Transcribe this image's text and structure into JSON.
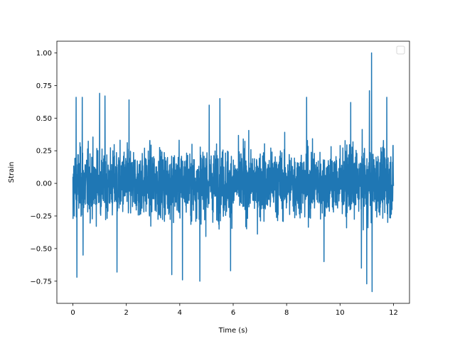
{
  "chart_data": {
    "type": "line",
    "title": "",
    "xlabel": "Time (s)",
    "ylabel": "Strain",
    "xlim": [
      -0.6,
      12.6
    ],
    "ylim": [
      -0.92,
      1.09
    ],
    "xticks": [
      0,
      2,
      4,
      6,
      8,
      10,
      12
    ],
    "xtick_labels": [
      "0",
      "2",
      "4",
      "6",
      "8",
      "10",
      "12"
    ],
    "yticks": [
      -0.75,
      -0.5,
      -0.25,
      0.0,
      0.25,
      0.5,
      0.75,
      1.0
    ],
    "ytick_labels": [
      "−0.75",
      "−0.50",
      "−0.25",
      "0.00",
      "0.25",
      "0.50",
      "0.75",
      "1.00"
    ],
    "grid": false,
    "legend": "top-right",
    "legend_entries": [],
    "series": [
      {
        "color": "#1f77b4",
        "x_range": [
          0,
          12
        ],
        "envelope_upper": 0.4,
        "envelope_lower": -0.4,
        "peaks": [
          {
            "x": 0.12,
            "y": 0.66
          },
          {
            "x": 0.15,
            "y": -0.72
          },
          {
            "x": 0.35,
            "y": 0.66
          },
          {
            "x": 0.38,
            "y": -0.55
          },
          {
            "x": 1.0,
            "y": 0.69
          },
          {
            "x": 1.2,
            "y": 0.67
          },
          {
            "x": 1.65,
            "y": -0.68
          },
          {
            "x": 2.1,
            "y": 0.64
          },
          {
            "x": 3.7,
            "y": -0.7
          },
          {
            "x": 4.1,
            "y": -0.74
          },
          {
            "x": 4.75,
            "y": -0.75
          },
          {
            "x": 5.1,
            "y": 0.6
          },
          {
            "x": 5.5,
            "y": 0.65
          },
          {
            "x": 5.9,
            "y": -0.67
          },
          {
            "x": 8.75,
            "y": 0.66
          },
          {
            "x": 9.4,
            "y": -0.6
          },
          {
            "x": 10.4,
            "y": 0.62
          },
          {
            "x": 10.8,
            "y": -0.65
          },
          {
            "x": 11.0,
            "y": -0.77
          },
          {
            "x": 11.1,
            "y": 0.71
          },
          {
            "x": 11.18,
            "y": 1.0
          },
          {
            "x": 11.2,
            "y": -0.83
          },
          {
            "x": 11.75,
            "y": 0.66
          }
        ]
      }
    ]
  }
}
